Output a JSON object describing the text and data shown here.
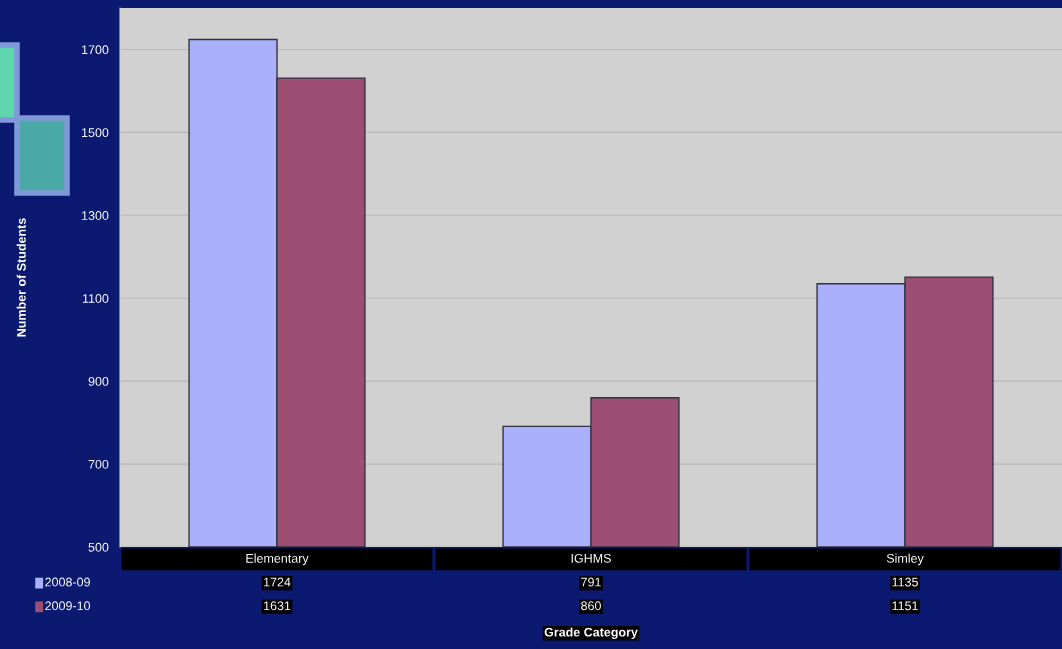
{
  "chart_data": {
    "type": "bar",
    "xlabel": "Grade Category",
    "ylabel": "Number of Students",
    "categories": [
      "Elementary",
      "IGHMS",
      "Simley"
    ],
    "series": [
      {
        "name": "2008-09",
        "color": "#aab0fb",
        "values": [
          1724,
          791,
          1135
        ]
      },
      {
        "name": "2009-10",
        "color": "#9c4f72",
        "values": [
          1631,
          860,
          1151
        ]
      }
    ],
    "ylim": [
      500,
      1800
    ],
    "yticks": [
      500,
      700,
      900,
      1100,
      1300,
      1500,
      1700
    ],
    "grid": "y",
    "legend": "bottom left",
    "data_labels": true
  }
}
